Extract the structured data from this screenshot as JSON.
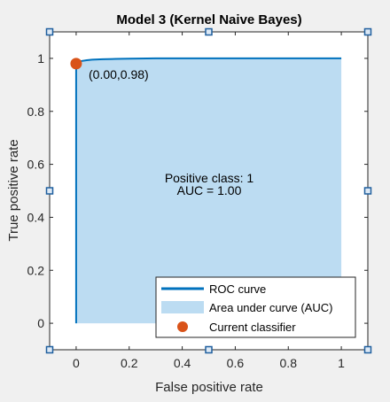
{
  "chart_data": {
    "type": "line",
    "title": "Model 3 (Kernel Naive Bayes)",
    "xlabel": "False positive rate",
    "ylabel": "True positive rate",
    "xlim": [
      -0.1,
      1.1
    ],
    "ylim": [
      -0.1,
      1.1
    ],
    "x_ticks": [
      0,
      0.2,
      0.4,
      0.6,
      0.8,
      1
    ],
    "x_tick_labels": [
      "0",
      "0.2",
      "0.4",
      "0.6",
      "0.8",
      "1"
    ],
    "y_ticks": [
      0,
      0.2,
      0.4,
      0.6,
      0.8,
      1
    ],
    "y_tick_labels": [
      "0",
      "0.2",
      "0.4",
      "0.6",
      "0.8",
      "1"
    ],
    "grid": false,
    "series": [
      {
        "name": "ROC curve",
        "kind": "line",
        "color": "#0072bd",
        "x": [
          0,
          0,
          0,
          0,
          0.01,
          0.02,
          0.04,
          0.06,
          0.1,
          0.15,
          0.2,
          0.3,
          0.5,
          0.7,
          1.0
        ],
        "y": [
          0,
          0.5,
          0.9,
          0.98,
          0.985,
          0.99,
          0.993,
          0.995,
          0.997,
          0.998,
          0.999,
          1.0,
          1.0,
          1.0,
          1.0
        ]
      },
      {
        "name": "Area under curve (AUC)",
        "kind": "area",
        "color": "#bcdcf2"
      },
      {
        "name": "Current classifier",
        "kind": "point",
        "color": "#d95319",
        "x": [
          0.0
        ],
        "y": [
          0.98
        ]
      }
    ],
    "annotations": [
      {
        "text": "(0.00,0.98)",
        "x": 0.0,
        "y": 0.98
      },
      {
        "text": "Positive class: 1"
      },
      {
        "text": "AUC = 1.00"
      }
    ],
    "legend": {
      "placement": "bottom-right",
      "entries": [
        "ROC curve",
        "Area under curve (AUC)",
        "Current classifier"
      ]
    }
  }
}
